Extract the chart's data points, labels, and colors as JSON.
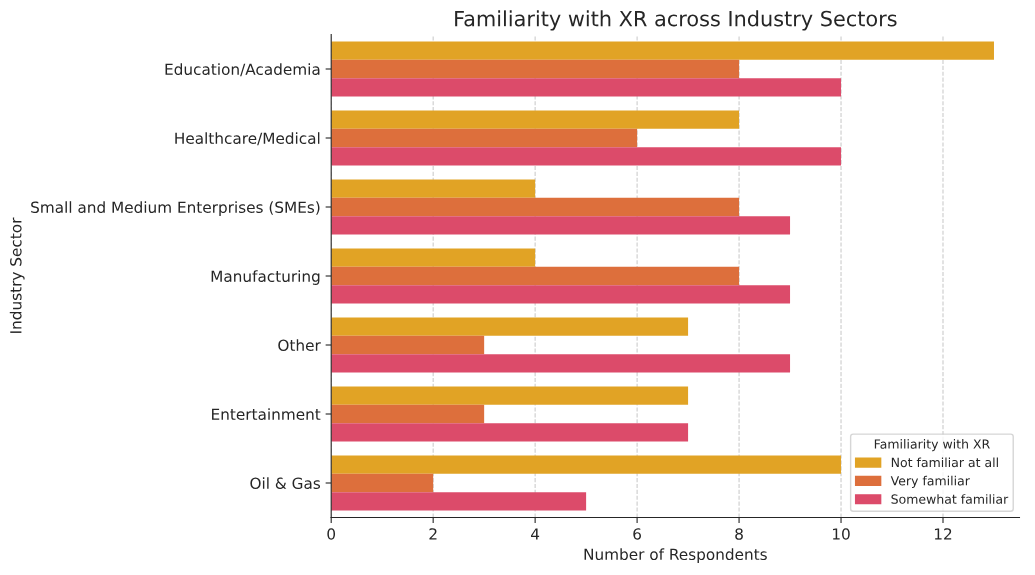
{
  "chart_data": {
    "type": "bar",
    "orientation": "horizontal",
    "title": "Familiarity with XR across Industry Sectors",
    "xlabel": "Number of Respondents",
    "ylabel": "Industry Sector",
    "legend_title": "Familiarity with XR",
    "legend": "bottom right",
    "categories": [
      "Education/Academia",
      "Healthcare/Medical",
      "Small and Medium Enterprises (SMEs)",
      "Manufacturing",
      "Other",
      "Entertainment",
      "Oil & Gas"
    ],
    "series": [
      {
        "name": "Not familiar at all",
        "color": "#e1a325",
        "values": [
          13,
          8,
          4,
          4,
          7,
          7,
          10
        ]
      },
      {
        "name": "Very familiar",
        "color": "#dd6f3c",
        "values": [
          8,
          6,
          8,
          8,
          3,
          3,
          2
        ]
      },
      {
        "name": "Somewhat familiar",
        "color": "#dc4b6a",
        "values": [
          10,
          10,
          9,
          9,
          9,
          7,
          5
        ]
      }
    ],
    "xlim": [
      0,
      13.5
    ],
    "xticks": [
      0,
      2,
      4,
      6,
      8,
      10,
      12
    ],
    "grid": "x"
  }
}
